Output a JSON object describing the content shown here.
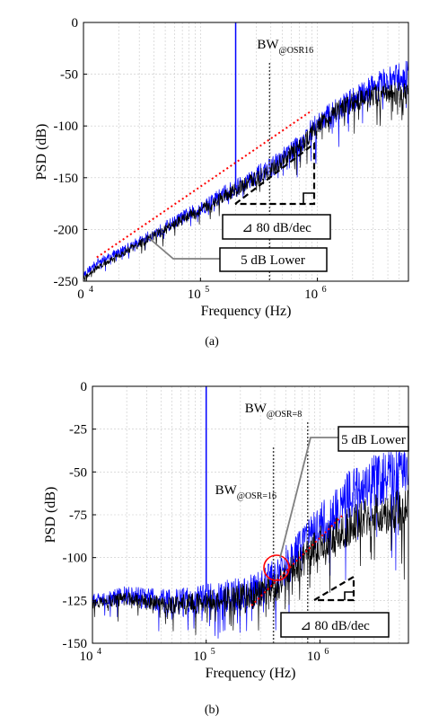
{
  "chart_data": [
    {
      "type": "line",
      "xlabel": "Frequency (Hz)",
      "ylabel": "PSD (dB)",
      "x_scale": "log",
      "xlim": [
        10000,
        6000000
      ],
      "ylim": [
        -250,
        0
      ],
      "grid": true,
      "yticks": [
        0,
        -50,
        -100,
        -150,
        -200,
        -250
      ],
      "yticklabels": [
        "0",
        "-50",
        "-100",
        "-150",
        "-200",
        "-250"
      ],
      "xticks": [
        10000,
        100000,
        1000000
      ],
      "xticklabels": [
        {
          "base": "10",
          "exp": "4"
        },
        {
          "base": "10",
          "exp": "5"
        },
        {
          "base": "10",
          "exp": "6"
        }
      ],
      "tick_label_note": "first tick label printed as 0 with superscript 4",
      "xtick_first_label": {
        "base": "0",
        "exp": "4"
      },
      "series": [
        {
          "color": "#0000ff",
          "x": [
            10000,
            13000,
            20000,
            30000,
            50000,
            80000,
            100000,
            150000,
            200000,
            300000,
            400000,
            500000,
            700000,
            1000000,
            1500000,
            2000000,
            3000000,
            6000000
          ],
          "y": [
            -244,
            -232,
            -222,
            -212,
            -198,
            -185,
            -180,
            -167,
            -160,
            -148,
            -140,
            -132,
            -118,
            -98,
            -83,
            -75,
            -62,
            -50
          ]
        },
        {
          "color": "#000000",
          "x": [
            10000,
            13000,
            20000,
            30000,
            50000,
            80000,
            100000,
            150000,
            200000,
            300000,
            400000,
            500000,
            700000,
            1000000,
            1500000,
            2000000,
            3000000,
            6000000
          ],
          "y": [
            -248,
            -237,
            -225,
            -214,
            -200,
            -187,
            -182,
            -169,
            -162,
            -150,
            -142,
            -134,
            -120,
            -100,
            -85,
            -77,
            -70,
            -68
          ]
        }
      ],
      "tone": {
        "x": 200000,
        "y": 0
      },
      "reference_line": {
        "color": "#ff0000",
        "style": "dotted",
        "x": [
          13000,
          900000
        ],
        "y": [
          -227,
          -85
        ]
      },
      "vlines": [
        {
          "x": 390000,
          "label_main": "BW",
          "label_sub": "@OSR16"
        }
      ],
      "annotations": [
        {
          "text": "⊿ 80 dB/dec"
        },
        {
          "text": "5 dB Lower"
        }
      ],
      "caption": "(a)"
    },
    {
      "type": "line",
      "xlabel": "Frequency (Hz)",
      "ylabel": "PSD (dB)",
      "x_scale": "log",
      "xlim": [
        10000,
        6000000
      ],
      "ylim": [
        -150,
        0
      ],
      "grid": true,
      "yticks": [
        0,
        -25,
        -50,
        -75,
        -100,
        -125,
        -150
      ],
      "yticklabels": [
        "0",
        "-25",
        "-50",
        "-75",
        "-100",
        "-125",
        "-150"
      ],
      "xticks": [
        10000,
        100000,
        1000000
      ],
      "xticklabels": [
        {
          "base": "10",
          "exp": "4"
        },
        {
          "base": "10",
          "exp": "5"
        },
        {
          "base": "10",
          "exp": "6"
        }
      ],
      "series": [
        {
          "color": "#0000ff",
          "x": [
            10000,
            20000,
            50000,
            100000,
            200000,
            300000,
            400000,
            500000,
            700000,
            1000000,
            1500000,
            2000000,
            3000000,
            6000000
          ],
          "y": [
            -125,
            -122,
            -126,
            -124,
            -121,
            -118,
            -112,
            -105,
            -95,
            -82,
            -70,
            -60,
            -55,
            -50
          ]
        },
        {
          "color": "#000000",
          "x": [
            10000,
            20000,
            50000,
            100000,
            200000,
            300000,
            400000,
            500000,
            700000,
            1000000,
            1500000,
            2000000,
            3000000,
            6000000
          ],
          "y": [
            -127,
            -124,
            -128,
            -126,
            -123,
            -121,
            -118,
            -112,
            -102,
            -92,
            -85,
            -80,
            -75,
            -72
          ]
        }
      ],
      "tone": {
        "x": 100000,
        "y": 0
      },
      "reference_line": {
        "color": "#ff0000",
        "style": "dotted",
        "x": [
          250000,
          1600000
        ],
        "y": [
          -128,
          -75
        ]
      },
      "vlines": [
        {
          "x": 390000,
          "label_main": "BW",
          "label_sub": "@OSR=16"
        },
        {
          "x": 780000,
          "label_main": "BW",
          "label_sub": "@OSR=8"
        }
      ],
      "annotations": [
        {
          "text": "5 dB Lower"
        },
        {
          "text": "⊿ 80 dB/dec"
        }
      ],
      "caption": "(b)"
    }
  ]
}
